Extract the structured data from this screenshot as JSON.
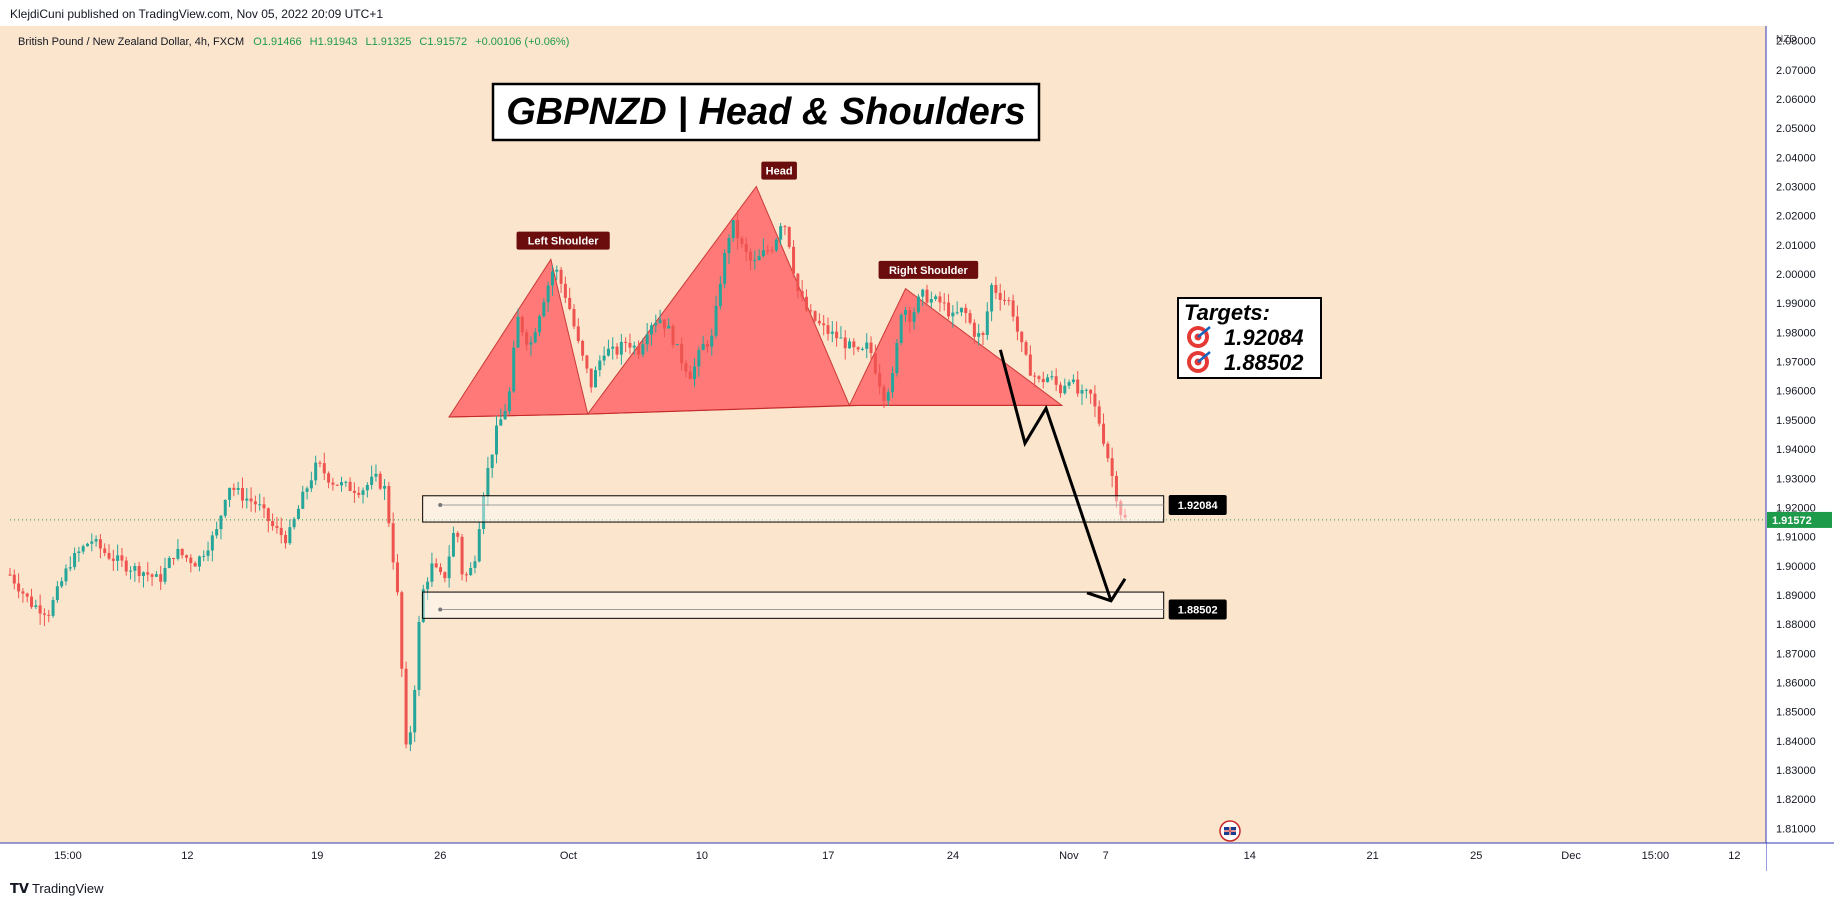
{
  "header": {
    "published_by": "KlejdiCuni published on TradingView.com, Nov 05, 2022 20:09 UTC+1"
  },
  "legend": {
    "symbol": "British Pound / New Zealand Dollar, 4h, FXCM",
    "open": "O1.91466",
    "high": "H1.91943",
    "low": "L1.91325",
    "close": "C1.91572",
    "change": "+0.00106 (+0.06%)"
  },
  "footer": {
    "brand": "TradingView"
  },
  "colors": {
    "background": "#fbe5cc",
    "up": "#26a69a",
    "down": "#ef5350",
    "pattern_fill": "#ff6e6e",
    "label_bg": "#6b0d0d",
    "last_price": "#1e9b4a",
    "axis_line": "#2f3bb5"
  },
  "chart_data": {
    "type": "candlestick",
    "title": "GBPNZD | Head & Shoulders",
    "currency_label": "NZD",
    "ylim": [
      1.805,
      2.085
    ],
    "y_ticks": [
      2.08,
      2.07,
      2.06,
      2.05,
      2.04,
      2.03,
      2.02,
      2.01,
      2.0,
      1.99,
      1.98,
      1.97,
      1.96,
      1.95,
      1.94,
      1.93,
      1.92,
      1.91,
      1.9,
      1.89,
      1.88,
      1.87,
      1.86,
      1.85,
      1.84,
      1.83,
      1.82,
      1.81
    ],
    "x_ticks": [
      {
        "label": "15:00",
        "pos": 0.033
      },
      {
        "label": "12",
        "pos": 0.101
      },
      {
        "label": "19",
        "pos": 0.175
      },
      {
        "label": "26",
        "pos": 0.245
      },
      {
        "label": "Oct",
        "pos": 0.318
      },
      {
        "label": "10",
        "pos": 0.394
      },
      {
        "label": "17",
        "pos": 0.466
      },
      {
        "label": "24",
        "pos": 0.537
      },
      {
        "label": "Nov",
        "pos": 0.603
      },
      {
        "label": "7",
        "pos": 0.624
      },
      {
        "label": "14",
        "pos": 0.706
      },
      {
        "label": "21",
        "pos": 0.776
      },
      {
        "label": "25",
        "pos": 0.835
      },
      {
        "label": "Dec",
        "pos": 0.889
      },
      {
        "label": "15:00",
        "pos": 0.937
      },
      {
        "label": "12",
        "pos": 0.982
      }
    ],
    "last_price": "1.91572",
    "pattern": {
      "neckline": "1.95",
      "labels": [
        {
          "text": "Left Shoulder",
          "pos": 0.315,
          "value": 2.008
        },
        {
          "text": "Head",
          "pos": 0.438,
          "value": 2.032
        },
        {
          "text": "Right Shoulder",
          "pos": 0.523,
          "value": 1.998
        }
      ]
    },
    "targets": {
      "title": "Targets:",
      "values": [
        "1.92084",
        "1.88502"
      ]
    },
    "zones": [
      {
        "top": 1.924,
        "bottom": 1.915,
        "level": 1.92084,
        "label": "1.92084"
      },
      {
        "top": 1.891,
        "bottom": 1.882,
        "level": 1.88502,
        "label": "1.88502"
      }
    ],
    "price_path": [
      [
        0.0,
        1.897
      ],
      [
        0.012,
        1.887
      ],
      [
        0.022,
        1.884
      ],
      [
        0.034,
        1.901
      ],
      [
        0.046,
        1.909
      ],
      [
        0.055,
        1.904
      ],
      [
        0.066,
        1.9
      ],
      [
        0.076,
        1.898
      ],
      [
        0.085,
        1.895
      ],
      [
        0.094,
        1.905
      ],
      [
        0.106,
        1.901
      ],
      [
        0.118,
        1.912
      ],
      [
        0.124,
        1.928
      ],
      [
        0.132,
        1.924
      ],
      [
        0.141,
        1.921
      ],
      [
        0.15,
        1.913
      ],
      [
        0.158,
        1.909
      ],
      [
        0.167,
        1.924
      ],
      [
        0.175,
        1.935
      ],
      [
        0.183,
        1.929
      ],
      [
        0.192,
        1.927
      ],
      [
        0.2,
        1.926
      ],
      [
        0.208,
        1.93
      ],
      [
        0.214,
        1.926
      ],
      [
        0.216,
        1.914
      ],
      [
        0.221,
        1.888
      ],
      [
        0.226,
        1.832
      ],
      [
        0.23,
        1.855
      ],
      [
        0.234,
        1.889
      ],
      [
        0.24,
        1.9
      ],
      [
        0.247,
        1.895
      ],
      [
        0.254,
        1.915
      ],
      [
        0.258,
        1.895
      ],
      [
        0.264,
        1.9
      ],
      [
        0.27,
        1.927
      ],
      [
        0.277,
        1.946
      ],
      [
        0.284,
        1.957
      ],
      [
        0.289,
        1.985
      ],
      [
        0.296,
        1.975
      ],
      [
        0.303,
        1.99
      ],
      [
        0.31,
        2.003
      ],
      [
        0.318,
        1.99
      ],
      [
        0.324,
        1.975
      ],
      [
        0.331,
        1.962
      ],
      [
        0.338,
        1.974
      ],
      [
        0.345,
        1.973
      ],
      [
        0.351,
        1.977
      ],
      [
        0.358,
        1.974
      ],
      [
        0.364,
        1.983
      ],
      [
        0.37,
        1.985
      ],
      [
        0.376,
        1.98
      ],
      [
        0.382,
        1.971
      ],
      [
        0.388,
        1.965
      ],
      [
        0.394,
        1.975
      ],
      [
        0.4,
        1.978
      ],
      [
        0.405,
        2.0
      ],
      [
        0.411,
        2.018
      ],
      [
        0.417,
        2.009
      ],
      [
        0.423,
        2.003
      ],
      [
        0.429,
        2.007
      ],
      [
        0.435,
        2.01
      ],
      [
        0.44,
        2.02
      ],
      [
        0.444,
        2.01
      ],
      [
        0.448,
        1.995
      ],
      [
        0.454,
        1.987
      ],
      [
        0.46,
        1.983
      ],
      [
        0.466,
        1.98
      ],
      [
        0.472,
        1.978
      ],
      [
        0.478,
        1.975
      ],
      [
        0.484,
        1.972
      ],
      [
        0.489,
        1.976
      ],
      [
        0.494,
        1.965
      ],
      [
        0.498,
        1.958
      ],
      [
        0.503,
        1.965
      ],
      [
        0.508,
        1.99
      ],
      [
        0.513,
        1.985
      ],
      [
        0.519,
        1.993
      ],
      [
        0.525,
        1.991
      ],
      [
        0.531,
        1.99
      ],
      [
        0.537,
        1.985
      ],
      [
        0.543,
        1.988
      ],
      [
        0.549,
        1.98
      ],
      [
        0.554,
        1.978
      ],
      [
        0.559,
        1.996
      ],
      [
        0.565,
        1.992
      ],
      [
        0.57,
        1.99
      ],
      [
        0.575,
        1.977
      ],
      [
        0.58,
        1.968
      ],
      [
        0.586,
        1.963
      ],
      [
        0.592,
        1.965
      ],
      [
        0.598,
        1.96
      ],
      [
        0.603,
        1.965
      ],
      [
        0.609,
        1.958
      ],
      [
        0.615,
        1.959
      ],
      [
        0.62,
        1.95
      ],
      [
        0.625,
        1.938
      ],
      [
        0.629,
        1.927
      ],
      [
        0.632,
        1.919
      ],
      [
        0.635,
        1.916
      ]
    ]
  }
}
